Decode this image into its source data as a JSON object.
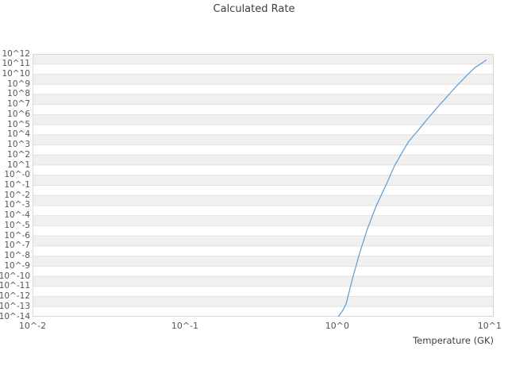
{
  "chart_data": {
    "type": "line",
    "title": "Calculated Rate",
    "xlabel": "Temperature (GK)",
    "ylabel": "",
    "x_scale": "log10",
    "y_scale": "log10",
    "xlim_log10": [
      -2,
      1.027
    ],
    "ylim_log10": [
      -14,
      12
    ],
    "grid": "horizontal decade gridlines with alternating shaded bands, no vertical gridlines",
    "legend": "none",
    "x_ticks": [
      {
        "label": "10^-2",
        "log10": -2
      },
      {
        "label": "10^-1",
        "log10": -1
      },
      {
        "label": "10^0",
        "log10": 0
      },
      {
        "label": "10^1",
        "log10": 1
      }
    ],
    "y_ticks": [
      {
        "label": "10^12",
        "log10": 12
      },
      {
        "label": "10^11",
        "log10": 11
      },
      {
        "label": "10^10",
        "log10": 10
      },
      {
        "label": "10^9",
        "log10": 9
      },
      {
        "label": "10^8",
        "log10": 8
      },
      {
        "label": "10^7",
        "log10": 7
      },
      {
        "label": "10^6",
        "log10": 6
      },
      {
        "label": "10^5",
        "log10": 5
      },
      {
        "label": "10^4",
        "log10": 4
      },
      {
        "label": "10^3",
        "log10": 3
      },
      {
        "label": "10^2",
        "log10": 2
      },
      {
        "label": "10^1",
        "log10": 1
      },
      {
        "label": "10^-0",
        "log10": 0
      },
      {
        "label": "10^-1",
        "log10": -1
      },
      {
        "label": "10^-2",
        "log10": -2
      },
      {
        "label": "10^-3",
        "log10": -3
      },
      {
        "label": "10^-4",
        "log10": -4
      },
      {
        "label": "10^-5",
        "log10": -5
      },
      {
        "label": "10^-6",
        "log10": -6
      },
      {
        "label": "10^-7",
        "log10": -7
      },
      {
        "label": "10^-8",
        "log10": -8
      },
      {
        "label": "10^-9",
        "log10": -9
      },
      {
        "label": "10^-10",
        "log10": -10
      },
      {
        "label": "10^-11",
        "log10": -11
      },
      {
        "label": "10^-12",
        "log10": -12
      },
      {
        "label": "10^-13",
        "log10": -13
      },
      {
        "label": "10^-14",
        "log10": -14
      }
    ],
    "series": [
      {
        "name": "calculated rate",
        "color": "#5b9bd5",
        "points_T_GK_vs_log10_rate": [
          [
            1.016,
            -14.0
          ],
          [
            1.09,
            -13.35
          ],
          [
            1.145,
            -12.7
          ],
          [
            1.26,
            -10.2
          ],
          [
            1.4,
            -7.75
          ],
          [
            1.57,
            -5.4
          ],
          [
            1.8,
            -3.05
          ],
          [
            2.13,
            -0.7
          ],
          [
            2.37,
            0.9
          ],
          [
            2.63,
            2.1
          ],
          [
            2.93,
            3.3
          ],
          [
            3.4,
            4.45
          ],
          [
            3.9,
            5.55
          ],
          [
            4.5,
            6.65
          ],
          [
            5.2,
            7.7
          ],
          [
            6.0,
            8.75
          ],
          [
            7.0,
            9.8
          ],
          [
            8.0,
            10.65
          ],
          [
            9.0,
            11.15
          ],
          [
            9.5,
            11.4
          ]
        ]
      }
    ]
  },
  "theme": {
    "background": "#ffffff",
    "band_fill": "#f0f0f0",
    "band_alt_fill": "#ffffff",
    "grid_line": "#e2e2e2",
    "plot_border": "#d7d7d7",
    "title_color": "#3f3f3f",
    "tick_color": "#555555",
    "line_color": "#5b9bd5"
  }
}
